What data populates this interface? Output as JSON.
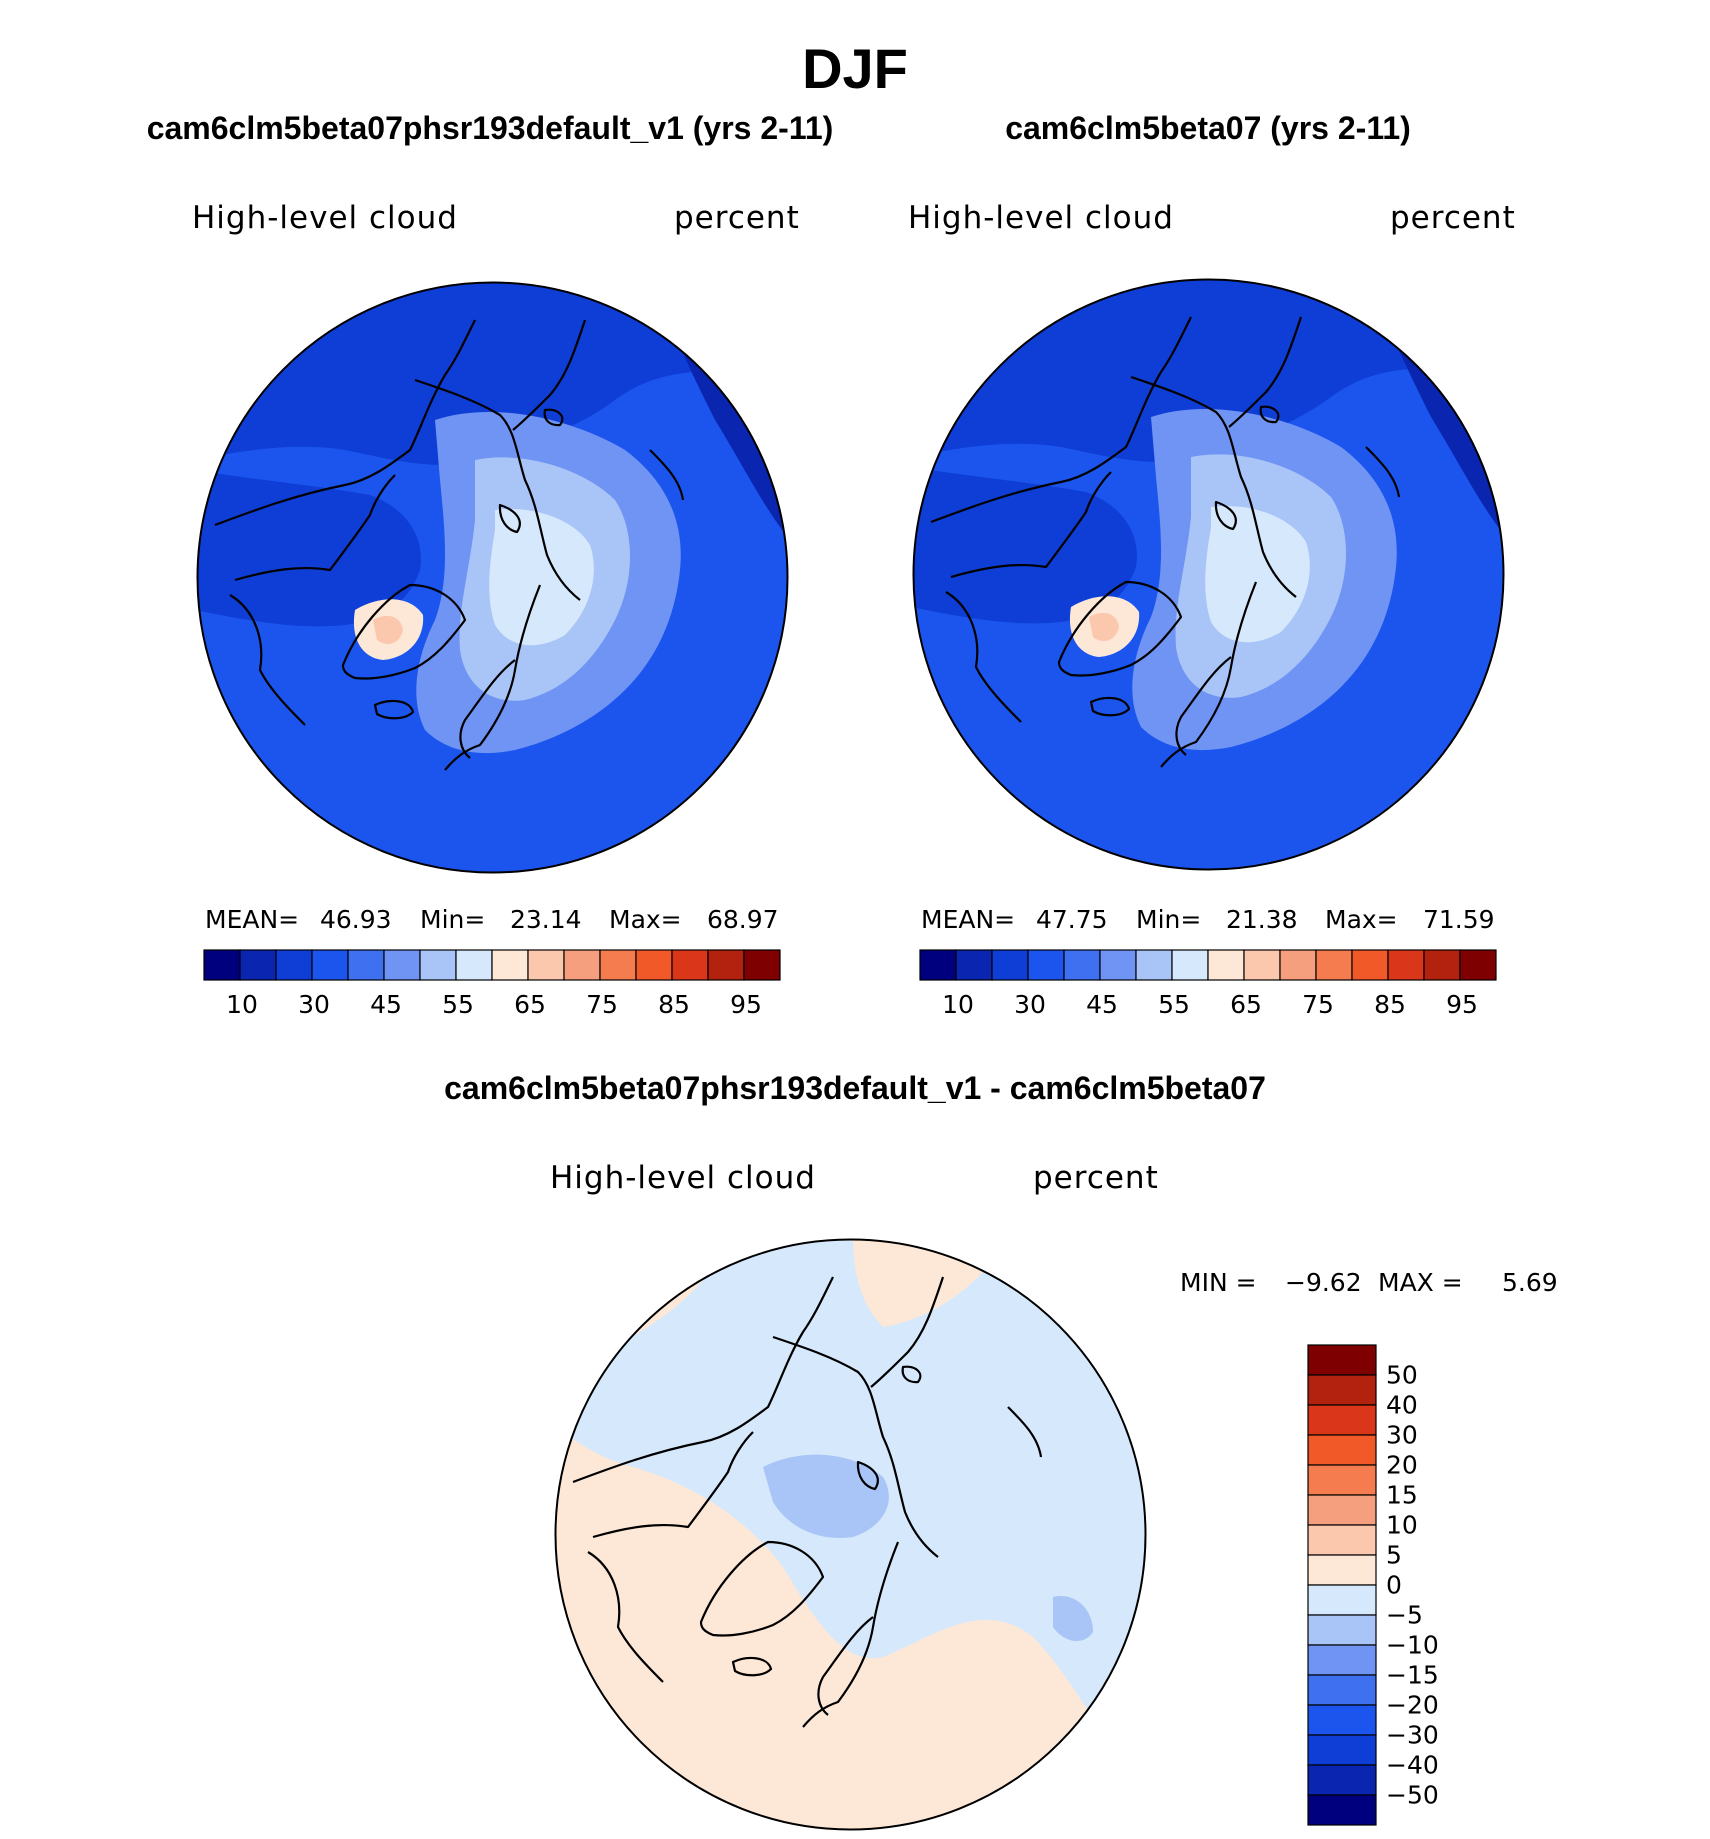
{
  "title": "DJF",
  "colors": {
    "abs_scale": [
      "#00007f",
      "#0a25b0",
      "#0e3ed6",
      "#1c55ee",
      "#3f70f0",
      "#6f94f3",
      "#a9c5f7",
      "#d6e8fb",
      "#fde8d8",
      "#fbc8ae",
      "#f69f7e",
      "#f57c4f",
      "#f15a28",
      "#d9361a",
      "#b3210f",
      "#7f0000"
    ],
    "diff_scale": [
      "#00007f",
      "#0a25b0",
      "#0e3ed6",
      "#1c55ee",
      "#3f70f0",
      "#6f94f3",
      "#a9c5f7",
      "#d6e8fb",
      "#fde8d8",
      "#fbc8ae",
      "#f69f7e",
      "#f57c4f",
      "#f15a28",
      "#d9361a",
      "#b3210f",
      "#7f0000"
    ]
  },
  "panels": [
    {
      "title": "cam6clm5beta07phsr193default_v1 (yrs 2-11)",
      "variable": "High-level cloud",
      "units": "percent",
      "mean_label": "MEAN=",
      "mean": "46.93",
      "min_label": "Min=",
      "min": "23.14",
      "max_label": "Max=",
      "max": "68.97"
    },
    {
      "title": "cam6clm5beta07 (yrs 2-11)",
      "variable": "High-level cloud",
      "units": "percent",
      "mean_label": "MEAN=",
      "mean": "47.75",
      "min_label": "Min=",
      "min": "21.38",
      "max_label": "Max=",
      "max": "71.59"
    }
  ],
  "diff_panel": {
    "title": "cam6clm5beta07phsr193default_v1 - cam6clm5beta07",
    "variable": "High-level cloud",
    "units": "percent",
    "min_label": "MIN =",
    "min": "−9.62",
    "max_label": "MAX =",
    "max": "5.69"
  },
  "chart_data": [
    {
      "type": "heatmap",
      "projection": "north-polar-stereographic",
      "title": "cam6clm5beta07phsr193default_v1 (yrs 2-11)",
      "field": "High-level cloud",
      "units": "percent",
      "stats": {
        "mean": 46.93,
        "min": 23.14,
        "max": 68.97
      },
      "colorbar": {
        "orientation": "horizontal",
        "levels": [
          5,
          10,
          20,
          30,
          40,
          45,
          50,
          55,
          60,
          65,
          70,
          75,
          80,
          85,
          90,
          95
        ],
        "tick_labels": [
          "10",
          "30",
          "45",
          "55",
          "65",
          "75",
          "85",
          "95"
        ]
      }
    },
    {
      "type": "heatmap",
      "projection": "north-polar-stereographic",
      "title": "cam6clm5beta07 (yrs 2-11)",
      "field": "High-level cloud",
      "units": "percent",
      "stats": {
        "mean": 47.75,
        "min": 21.38,
        "max": 71.59
      },
      "colorbar": {
        "orientation": "horizontal",
        "levels": [
          5,
          10,
          20,
          30,
          40,
          45,
          50,
          55,
          60,
          65,
          70,
          75,
          80,
          85,
          90,
          95
        ],
        "tick_labels": [
          "10",
          "30",
          "45",
          "55",
          "65",
          "75",
          "85",
          "95"
        ]
      }
    },
    {
      "type": "heatmap",
      "projection": "north-polar-stereographic",
      "title": "cam6clm5beta07phsr193default_v1 - cam6clm5beta07",
      "field": "High-level cloud",
      "units": "percent",
      "stats": {
        "min": -9.62,
        "max": 5.69
      },
      "colorbar": {
        "orientation": "vertical",
        "tick_labels": [
          "50",
          "40",
          "30",
          "20",
          "15",
          "10",
          "5",
          "0",
          "−5",
          "−10",
          "−15",
          "−20",
          "−30",
          "−40",
          "−50"
        ]
      }
    }
  ]
}
